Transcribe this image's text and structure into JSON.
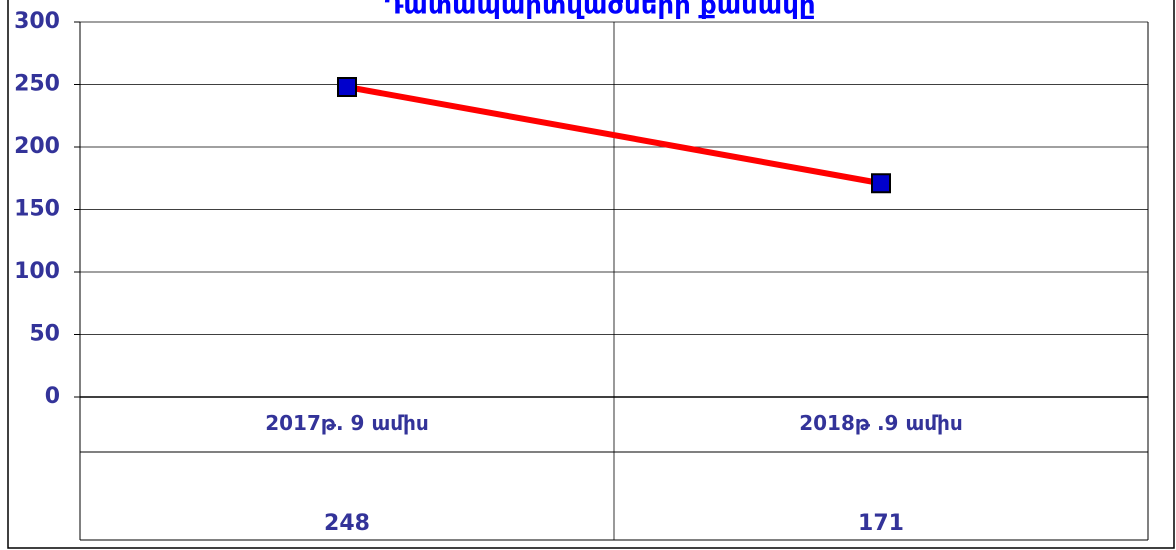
{
  "chart_data": {
    "type": "line",
    "title": "Դատապարտվածների  քանակը",
    "categories": [
      "2017թ. 9  ամիս",
      "2018թ .9  ամիս"
    ],
    "values": [
      248,
      171
    ],
    "color": "#ff0000",
    "marker_color": "#0000cc",
    "ylim": [
      0,
      300
    ],
    "yticks": [
      0,
      50,
      100,
      150,
      200,
      250,
      300
    ],
    "grid": true
  }
}
